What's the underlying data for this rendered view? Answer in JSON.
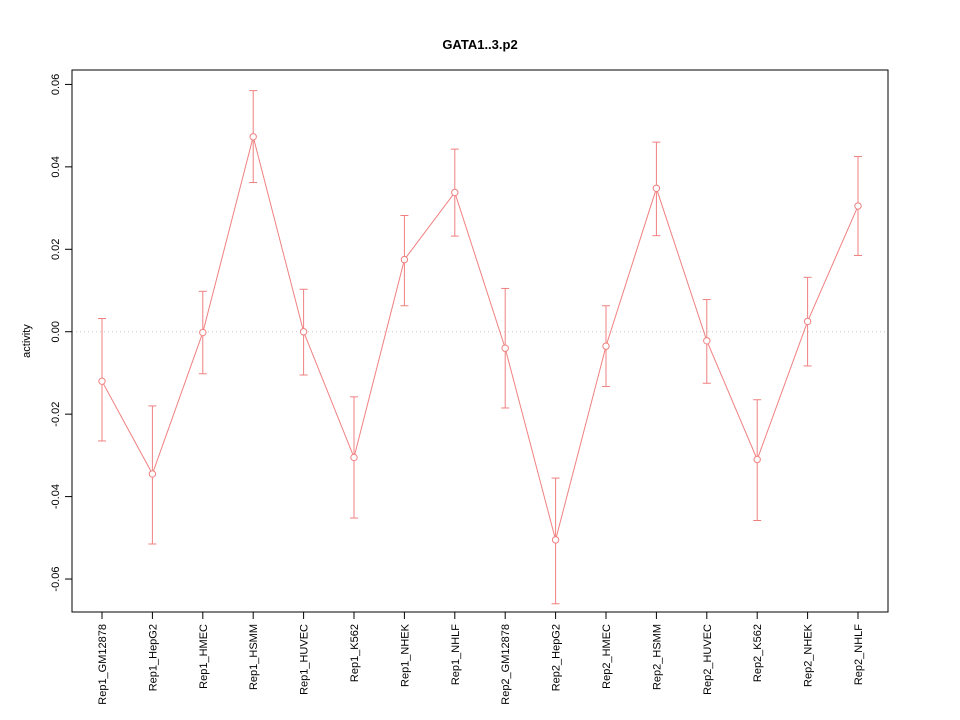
{
  "chart_data": {
    "type": "line",
    "title": "GATA1..3.p2",
    "xlabel": "",
    "ylabel": "activity",
    "legend": "none",
    "grid": "zero-line-only",
    "error_bars": true,
    "categories": [
      "Rep1_GM12878",
      "Rep1_HepG2",
      "Rep1_HMEC",
      "Rep1_HSMM",
      "Rep1_HUVEC",
      "Rep1_K562",
      "Rep1_NHEK",
      "Rep1_NHLF",
      "Rep2_GM12878",
      "Rep2_HepG2",
      "Rep2_HMEC",
      "Rep2_HSMM",
      "Rep2_HUVEC",
      "Rep2_K562",
      "Rep2_NHEK",
      "Rep2_NHLF"
    ],
    "series": [
      {
        "name": "activity",
        "color": "#f08080",
        "values": [
          -0.012,
          -0.0345,
          -0.0002,
          0.0473,
          0.0,
          -0.0305,
          0.0175,
          0.0338,
          -0.004,
          -0.0505,
          -0.0035,
          0.0348,
          -0.0022,
          -0.031,
          0.0025,
          0.0305
        ],
        "lower": [
          -0.0265,
          -0.0515,
          -0.0102,
          0.0362,
          -0.0105,
          -0.0452,
          0.0063,
          0.0232,
          -0.0185,
          -0.066,
          -0.0133,
          0.0233,
          -0.0125,
          -0.0458,
          -0.0083,
          0.0185
        ],
        "upper": [
          0.0032,
          -0.018,
          0.0098,
          0.0585,
          0.0103,
          -0.0158,
          0.0282,
          0.0443,
          0.0105,
          -0.0355,
          0.0063,
          0.046,
          0.0078,
          -0.0165,
          0.0132,
          0.0425
        ]
      }
    ],
    "ylim": [
      -0.068,
      0.0635
    ],
    "yticks": [
      -0.06,
      -0.04,
      -0.02,
      0,
      0.02,
      0.04,
      0.06
    ],
    "ytick_labels": [
      "-0.06",
      "-0.04",
      "-0.02",
      "0.00",
      "0.02",
      "0.04",
      "0.06"
    ],
    "zero_line": {
      "y": 0,
      "color": "#c8c8c8",
      "style": "dotted"
    },
    "frame_color": "#000000"
  }
}
